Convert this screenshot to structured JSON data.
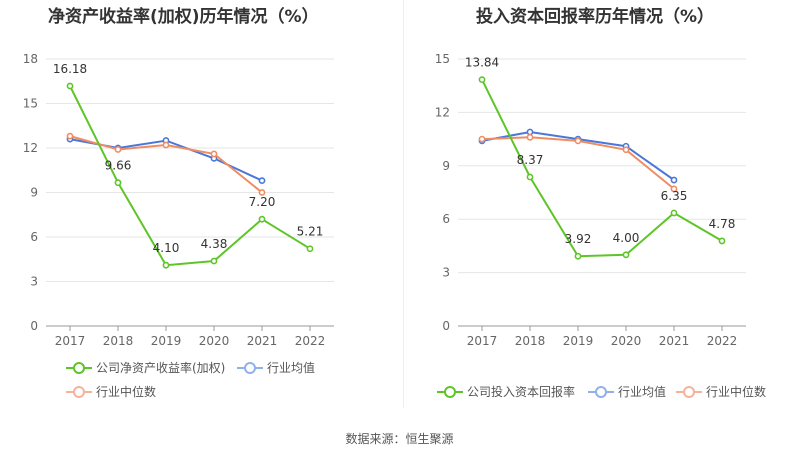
{
  "source": "数据来源：恒生聚源",
  "colors": {
    "company": "#5ec528",
    "avg": "#4a78d8",
    "median": "#f08c64"
  },
  "chart_data": [
    {
      "type": "line",
      "title": "净资产收益率(加权)历年情况（%）",
      "categories": [
        "2017",
        "2018",
        "2019",
        "2020",
        "2021",
        "2022"
      ],
      "ylim": [
        0,
        18
      ],
      "yticks": [
        0,
        3,
        6,
        9,
        12,
        15,
        18
      ],
      "grid": true,
      "legend_position": "bottom",
      "series": [
        {
          "name": "公司净资产收益率(加权)",
          "color": "#5ec528",
          "values": [
            16.18,
            9.66,
            4.1,
            4.38,
            7.2,
            5.21
          ],
          "labels": [
            "16.18",
            "9.66",
            "4.10",
            "4.38",
            "7.20",
            "5.21"
          ]
        },
        {
          "name": "行业均值",
          "color": "#4a78d8",
          "values": [
            12.6,
            12.0,
            12.5,
            11.3,
            9.8,
            null
          ]
        },
        {
          "name": "行业中位数",
          "color": "#f08c64",
          "values": [
            12.8,
            11.9,
            12.2,
            11.6,
            9.0,
            null
          ]
        }
      ]
    },
    {
      "type": "line",
      "title": "投入资本回报率历年情况（%）",
      "categories": [
        "2017",
        "2018",
        "2019",
        "2020",
        "2021",
        "2022"
      ],
      "ylim": [
        0,
        15
      ],
      "yticks": [
        0,
        3,
        6,
        9,
        12,
        15
      ],
      "grid": true,
      "legend_position": "bottom",
      "series": [
        {
          "name": "公司投入资本回报率",
          "color": "#5ec528",
          "values": [
            13.84,
            8.37,
            3.92,
            4.0,
            6.35,
            4.78
          ],
          "labels": [
            "13.84",
            "8.37",
            "3.92",
            "4.00",
            "6.35",
            "4.78"
          ]
        },
        {
          "name": "行业均值",
          "color": "#4a78d8",
          "values": [
            10.4,
            10.9,
            10.5,
            10.1,
            8.2,
            null
          ]
        },
        {
          "name": "行业中位数",
          "color": "#f08c64",
          "values": [
            10.5,
            10.6,
            10.4,
            9.9,
            7.7,
            null
          ]
        }
      ]
    }
  ]
}
